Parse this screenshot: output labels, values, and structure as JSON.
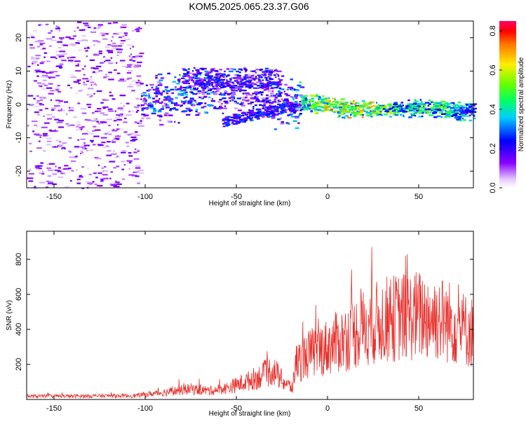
{
  "title": "KOM5.2025.065.23.37.G06",
  "chart_data": [
    {
      "type": "heatmap",
      "xlabel": "Height of straight line (km)",
      "ylabel": "Frequency (Hz)",
      "xlim": [
        -165,
        80
      ],
      "ylim": [
        -25,
        25
      ],
      "x_ticks": [
        -150,
        -100,
        -50,
        0,
        50
      ],
      "y_ticks": [
        -20,
        -10,
        0,
        10,
        20
      ],
      "colorbar": {
        "label": "Normalized spectral amplitude",
        "range": [
          0,
          0.85
        ],
        "ticks": [
          "0.0",
          "0.2",
          "0.4",
          "0.6",
          "0.8"
        ],
        "tick_values": [
          0,
          0.2,
          0.4,
          0.6,
          0.8
        ],
        "colormap": "rainbow"
      },
      "trace": {
        "x": [
          -100,
          -90,
          -80,
          -70,
          -60,
          -50,
          -40,
          -30,
          -20,
          -10,
          0,
          10,
          20,
          30,
          40,
          50,
          60,
          70,
          80
        ],
        "y": [
          1,
          2,
          3,
          4,
          5,
          4,
          3,
          1,
          1,
          0.5,
          0,
          -1,
          -1,
          -1.5,
          -1,
          -1,
          -1,
          -1.5,
          -2
        ],
        "amplitude": [
          0.3,
          0.3,
          0.32,
          0.35,
          0.3,
          0.25,
          0.25,
          0.25,
          0.3,
          0.5,
          0.65,
          0.6,
          0.62,
          0.55,
          0.45,
          0.45,
          0.45,
          0.4,
          0.35
        ]
      }
    },
    {
      "type": "line",
      "xlabel": "Height of straight line (km)",
      "ylabel": "SNR (v/v)",
      "xlim": [
        -165,
        80
      ],
      "ylim": [
        0,
        960
      ],
      "x_ticks": [
        -150,
        -100,
        -50,
        0,
        50
      ],
      "y_ticks": [
        200,
        400,
        600,
        800
      ],
      "line_color": "#e8302c",
      "trend": {
        "x": [
          -165,
          -130,
          -105,
          -90,
          -75,
          -65,
          -55,
          -45,
          -35,
          -30,
          -25,
          -19,
          -18,
          -10,
          0,
          10,
          20,
          30,
          40,
          50,
          60,
          70,
          75,
          80
        ],
        "y": [
          18,
          20,
          22,
          40,
          60,
          50,
          65,
          100,
          140,
          170,
          110,
          60,
          200,
          260,
          300,
          350,
          410,
          450,
          470,
          480,
          470,
          430,
          400,
          380
        ]
      }
    }
  ]
}
